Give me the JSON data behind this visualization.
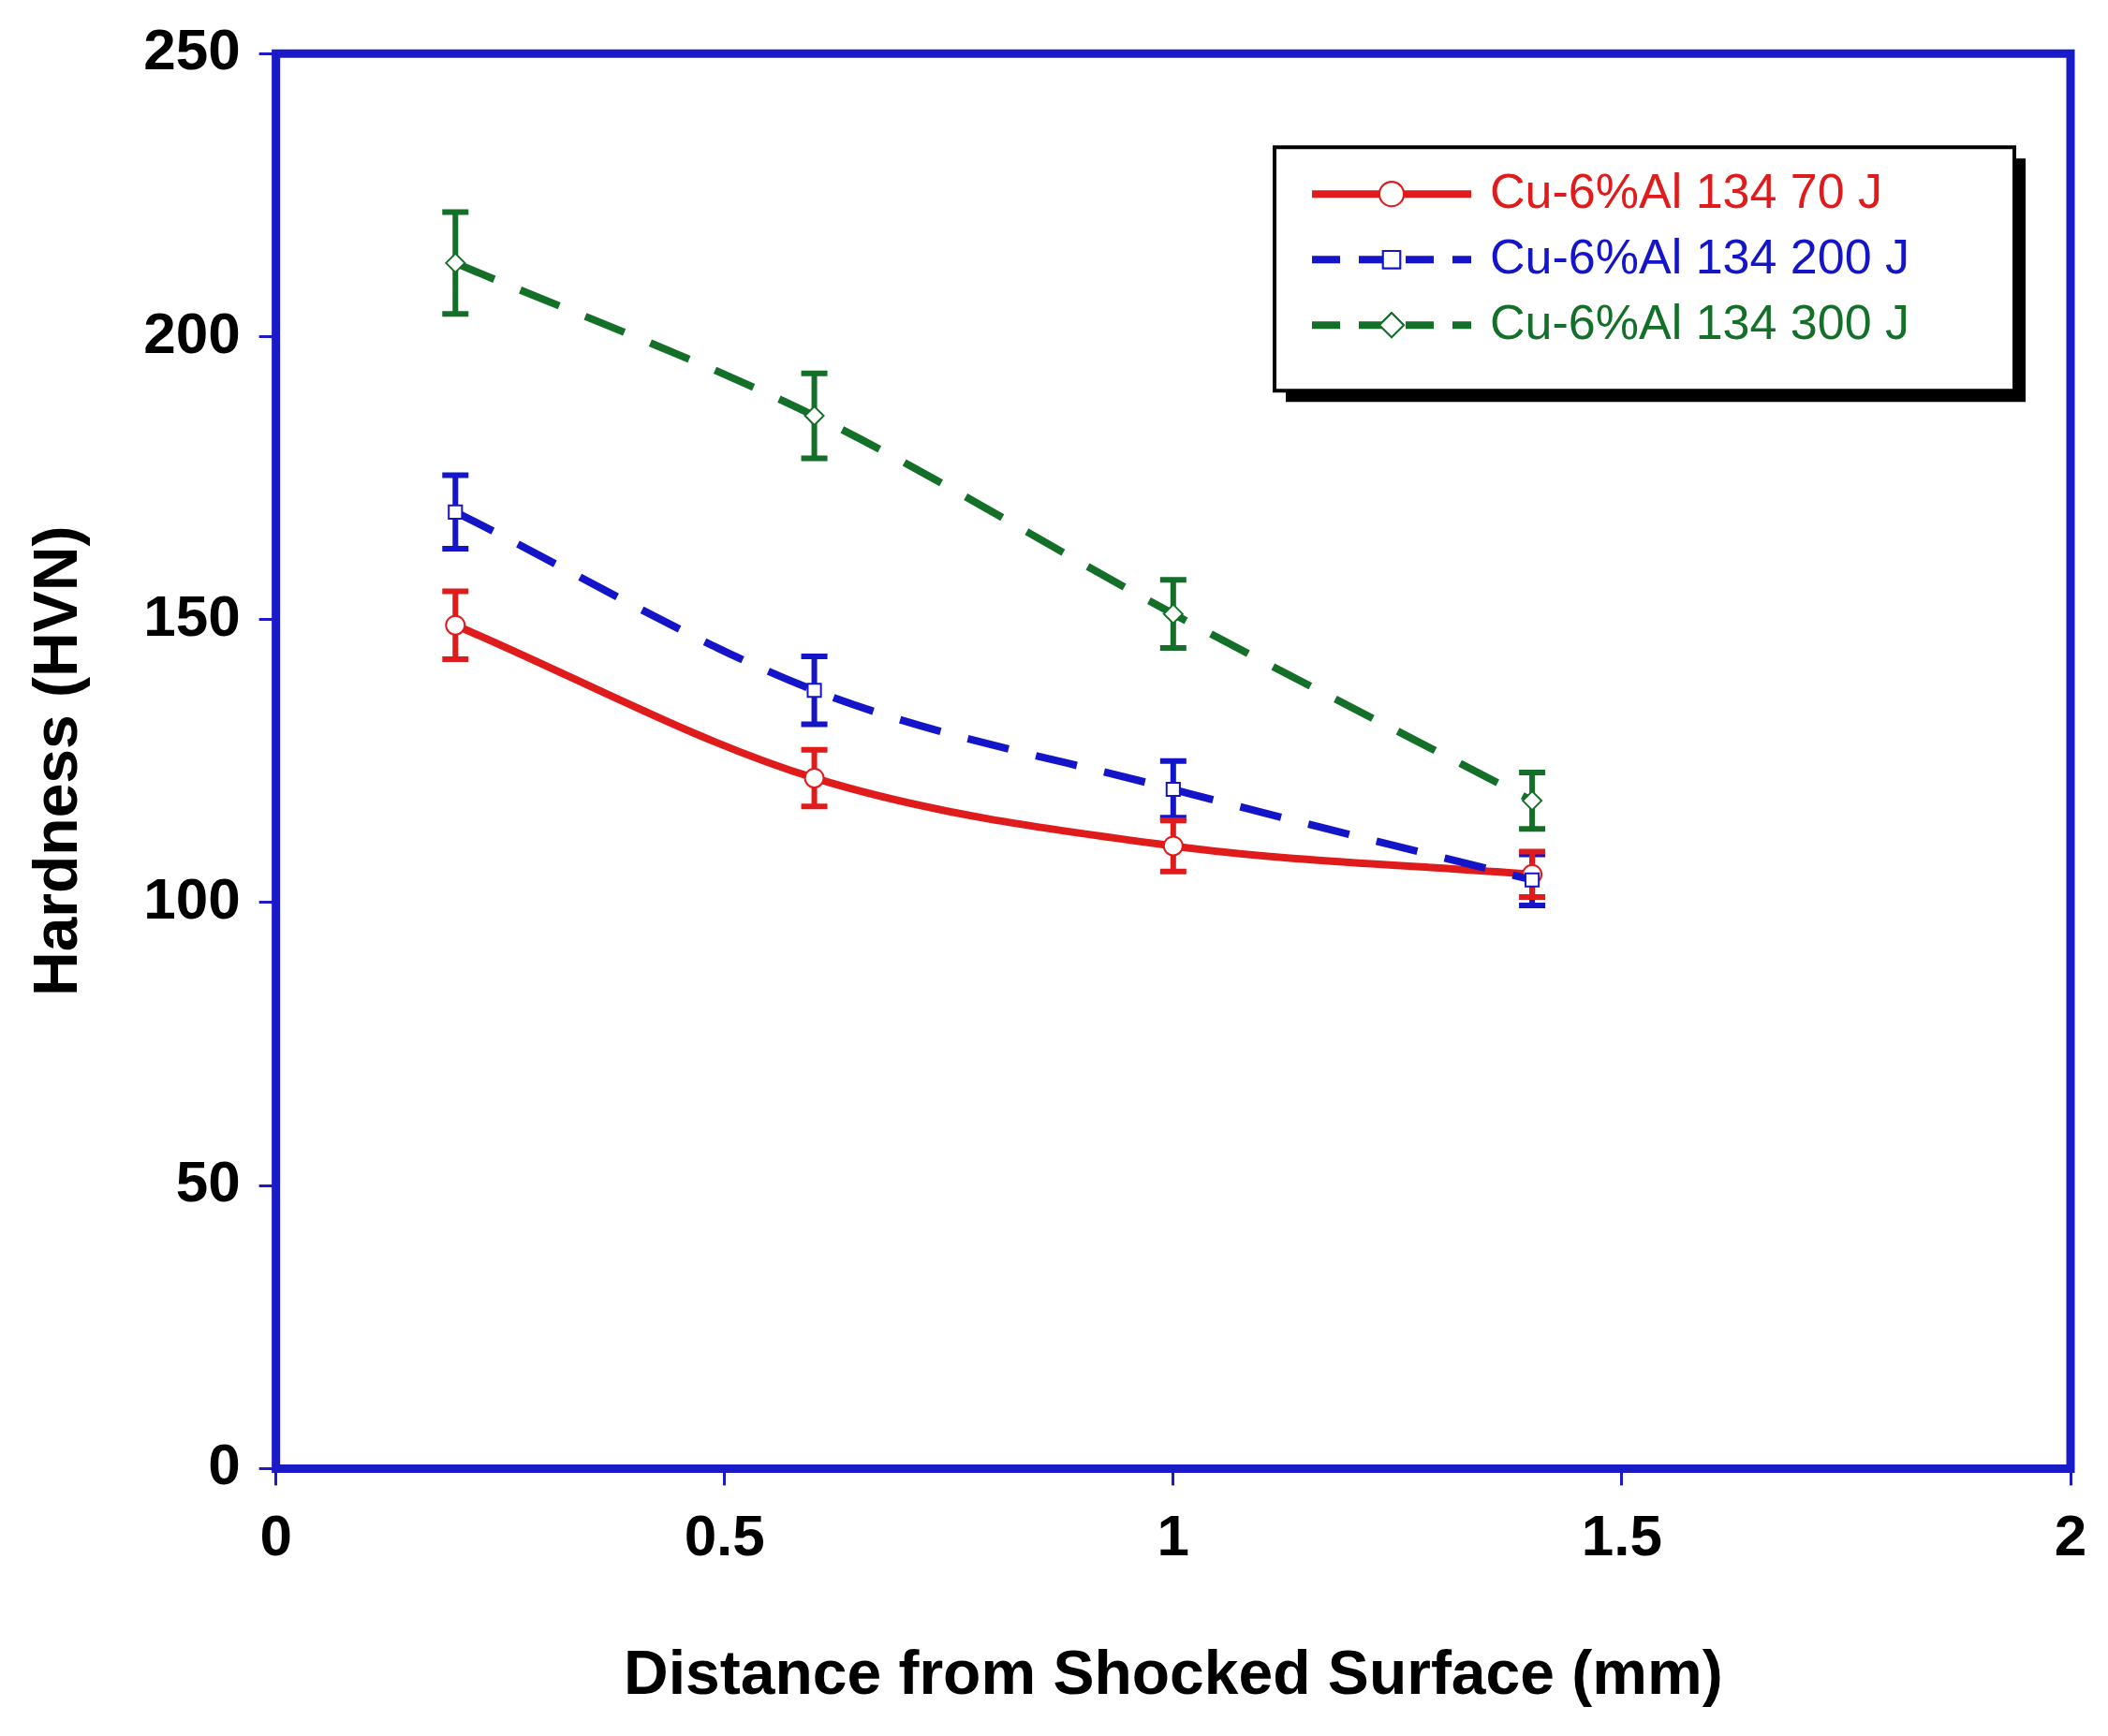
{
  "chart_data": {
    "type": "line",
    "xlabel": "Distance from Shocked Surface (mm)",
    "ylabel": "Hardness (HVN)",
    "xlim": [
      0,
      2
    ],
    "xticks": [
      0,
      0.5,
      1,
      1.5,
      2
    ],
    "ylim": [
      0,
      250
    ],
    "yticks": [
      0,
      50,
      100,
      150,
      200,
      250
    ],
    "grid": false,
    "legend": "top right",
    "series": [
      {
        "name": "Cu-6%Al 134 70 J",
        "color": "#e01b1b",
        "x": [
          0.2,
          0.6,
          1,
          1.4
        ],
        "values": [
          149,
          122,
          110,
          105
        ],
        "errors": [
          6,
          5,
          4.5,
          4
        ],
        "marker": "circle",
        "line_style": "solid"
      },
      {
        "name": "Cu-6%Al 134 200 J",
        "color": "#1414c8",
        "x": [
          0.2,
          0.6,
          1,
          1.4
        ],
        "values": [
          169,
          137.5,
          120,
          104
        ],
        "errors": [
          6.5,
          6,
          5,
          4.5
        ],
        "marker": "square",
        "line_style": "dashed"
      },
      {
        "name": "Cu-6%Al 134 300 J",
        "color": "#147028",
        "x": [
          0.2,
          0.6,
          1,
          1.4
        ],
        "values": [
          213,
          186,
          151,
          118
        ],
        "errors": [
          9,
          7.5,
          6,
          5
        ],
        "marker": "diamond",
        "line_style": "dashed"
      }
    ]
  }
}
